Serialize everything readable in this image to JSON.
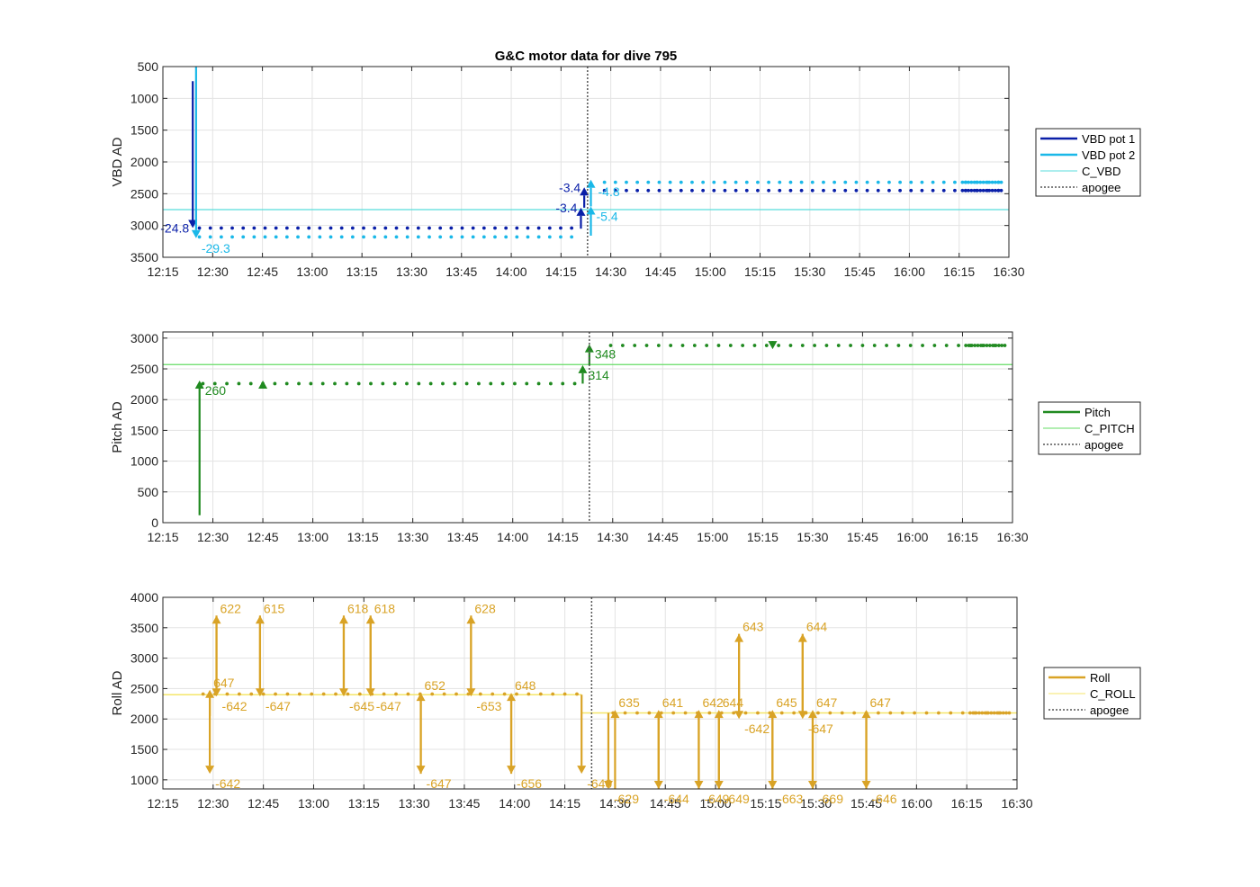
{
  "title": "G&C motor data for dive 795",
  "colors": {
    "vbd1": "#0a1fa8",
    "vbd2": "#1ab8e8",
    "c_vbd": "#58dedc",
    "pitch": "#208a20",
    "c_pitch": "#66dd66",
    "roll": "#d9a326",
    "c_roll": "#f5e66a",
    "apogee": "#555555"
  },
  "chart_data": [
    {
      "id": "vbd",
      "type": "scatter",
      "ylabel": "VBD AD",
      "xlim": [
        "12:15",
        "16:30"
      ],
      "ylim": [
        500,
        3500
      ],
      "y_reversed": true,
      "xtick_labels": [
        "12:15",
        "12:30",
        "12:45",
        "13:00",
        "13:15",
        "13:30",
        "13:45",
        "14:00",
        "14:15",
        "14:30",
        "14:45",
        "15:00",
        "15:15",
        "15:30",
        "15:45",
        "16:00",
        "16:15",
        "16:30"
      ],
      "ytick_labels": [
        "500",
        "1000",
        "1500",
        "2000",
        "2500",
        "3000",
        "3500"
      ],
      "grid": true,
      "legend": {
        "placement": "outside-right",
        "entries": [
          "VBD pot 1",
          "VBD pot 2",
          "C_VBD",
          "apogee"
        ]
      },
      "constant": {
        "name": "C_VBD",
        "value": 2750
      },
      "apogee": "14:23",
      "series": [
        {
          "name": "VBD pot 1",
          "y_before": 3040,
          "y_after": 2450
        },
        {
          "name": "VBD pot 2",
          "y_before": 3180,
          "y_after": 2320
        }
      ],
      "moves": [
        {
          "series": "VBD pot 1",
          "t": "12:24",
          "y1": 730,
          "y2": 3040,
          "label": "-24.8",
          "anchor": "left"
        },
        {
          "series": "VBD pot 2",
          "t": "12:25",
          "y1": 500,
          "y2": 3200,
          "label": "-29.3",
          "anchor": "right-below"
        },
        {
          "series": "VBD pot 1",
          "t": "14:21",
          "y1": 3050,
          "y2": 2720,
          "label": "-3.4",
          "anchor": "left"
        },
        {
          "series": "VBD pot 1",
          "t": "14:22",
          "y1": 2720,
          "y2": 2400,
          "label": "-3.4",
          "anchor": "left"
        },
        {
          "series": "VBD pot 2",
          "t": "14:24",
          "y1": 3160,
          "y2": 2700,
          "label": "-5.4",
          "anchor": "right-below"
        },
        {
          "series": "VBD pot 2",
          "t": "14:24",
          "y1": 2700,
          "y2": 2280,
          "label": "-4.8",
          "anchor": "right"
        }
      ]
    },
    {
      "id": "pitch",
      "type": "scatter",
      "ylabel": "Pitch AD",
      "xlim": [
        "12:15",
        "16:30"
      ],
      "ylim": [
        0,
        3100
      ],
      "xtick_labels": [
        "12:15",
        "12:30",
        "12:45",
        "13:00",
        "13:15",
        "13:30",
        "13:45",
        "14:00",
        "14:15",
        "14:30",
        "14:45",
        "15:00",
        "15:15",
        "15:30",
        "15:45",
        "16:00",
        "16:15",
        "16:30"
      ],
      "ytick_labels": [
        "0",
        "500",
        "1000",
        "1500",
        "2000",
        "2500",
        "3000"
      ],
      "grid": true,
      "legend": {
        "placement": "outside-right",
        "entries": [
          "Pitch",
          "C_PITCH",
          "apogee"
        ]
      },
      "constant": {
        "name": "C_PITCH",
        "value": 2570
      },
      "apogee": "14:23",
      "series": [
        {
          "name": "Pitch",
          "y_before": 2260,
          "y_after": 2880
        }
      ],
      "moves": [
        {
          "t": "12:26",
          "y1": 120,
          "y2": 2310,
          "label": "260",
          "anchor": "right-below"
        },
        {
          "t": "12:45",
          "y1": 2240,
          "y2": 2310,
          "label": "",
          "anchor": "none"
        },
        {
          "t": "14:21",
          "y1": 2260,
          "y2": 2560,
          "label": "314",
          "anchor": "right-below"
        },
        {
          "t": "14:23",
          "y1": 2560,
          "y2": 2900,
          "label": "348",
          "anchor": "right-below"
        },
        {
          "t": "15:18",
          "y1": 2900,
          "y2": 2820,
          "label": "",
          "anchor": "none"
        }
      ]
    },
    {
      "id": "roll",
      "type": "scatter",
      "ylabel": "Roll AD",
      "xlim": [
        "12:15",
        "16:30"
      ],
      "ylim": [
        850,
        4000
      ],
      "xtick_labels": [
        "12:15",
        "12:30",
        "12:45",
        "13:00",
        "13:15",
        "13:30",
        "13:45",
        "14:00",
        "14:15",
        "14:30",
        "14:45",
        "15:00",
        "15:15",
        "15:30",
        "15:45",
        "16:00",
        "16:15",
        "16:30"
      ],
      "ytick_labels": [
        "1000",
        "1500",
        "2000",
        "2500",
        "3000",
        "3500",
        "4000"
      ],
      "grid": true,
      "legend": {
        "placement": "outside-right",
        "entries": [
          "Roll",
          "C_ROLL",
          "apogee"
        ]
      },
      "constant_segments": [
        {
          "name": "C_ROLL",
          "from": "12:15",
          "to": "14:20",
          "value": 2400
        },
        {
          "name": "C_ROLL",
          "from": "14:20",
          "to": "16:30",
          "value": 2100
        }
      ],
      "apogee": "14:23",
      "series": [
        {
          "name": "Roll",
          "y_before": 2410,
          "y_after": 2100
        }
      ],
      "moves": [
        {
          "t": "12:29",
          "y1": 2400,
          "y2": 1100,
          "label": "-642",
          "anchor": "right-below"
        },
        {
          "t": "12:29",
          "y1": 2050,
          "y2": 2480,
          "label": "647",
          "anchor": "right-above"
        },
        {
          "t": "12:31",
          "y1": 2400,
          "y2": 3700,
          "label": "622",
          "anchor": "right-above"
        },
        {
          "t": "12:31",
          "y1": 3700,
          "y2": 2370,
          "label": "-642",
          "anchor": "right-below"
        },
        {
          "t": "12:44",
          "y1": 2400,
          "y2": 3700,
          "label": "615",
          "anchor": "right-above"
        },
        {
          "t": "12:44",
          "y1": 3700,
          "y2": 2370,
          "label": "-647",
          "anchor": "right-below"
        },
        {
          "t": "13:09",
          "y1": 2400,
          "y2": 3700,
          "label": "618",
          "anchor": "right-above"
        },
        {
          "t": "13:09",
          "y1": 3700,
          "y2": 2370,
          "label": "-645",
          "anchor": "right-below"
        },
        {
          "t": "13:17",
          "y1": 2400,
          "y2": 3700,
          "label": "618",
          "anchor": "right-above"
        },
        {
          "t": "13:17",
          "y1": 3700,
          "y2": 2370,
          "label": "-647",
          "anchor": "right-below"
        },
        {
          "t": "13:32",
          "y1": 2400,
          "y2": 1100,
          "label": "-647",
          "anchor": "right-below"
        },
        {
          "t": "13:32",
          "y1": 1100,
          "y2": 2430,
          "label": "652",
          "anchor": "right-above"
        },
        {
          "t": "13:47",
          "y1": 2400,
          "y2": 3700,
          "label": "628",
          "anchor": "right-above"
        },
        {
          "t": "13:47",
          "y1": 3700,
          "y2": 2370,
          "label": "-653",
          "anchor": "right-below"
        },
        {
          "t": "13:59",
          "y1": 2400,
          "y2": 1100,
          "label": "-656",
          "anchor": "right-below"
        },
        {
          "t": "13:59",
          "y1": 1100,
          "y2": 2430,
          "label": "648",
          "anchor": "right-above"
        },
        {
          "t": "14:20",
          "y1": 2400,
          "y2": 1100,
          "label": "-640",
          "anchor": "right-below"
        },
        {
          "t": "14:28",
          "y1": 2100,
          "y2": 850,
          "label": "-629",
          "anchor": "right-below"
        },
        {
          "t": "14:30",
          "y1": 850,
          "y2": 2150,
          "label": "635",
          "anchor": "right-above"
        },
        {
          "t": "14:43",
          "y1": 2100,
          "y2": 850,
          "label": "-644",
          "anchor": "right-below"
        },
        {
          "t": "14:43",
          "y1": 850,
          "y2": 2150,
          "label": "641",
          "anchor": "right-above"
        },
        {
          "t": "14:55",
          "y1": 2100,
          "y2": 850,
          "label": "-649",
          "anchor": "right-below"
        },
        {
          "t": "14:55",
          "y1": 850,
          "y2": 2150,
          "label": "642",
          "anchor": "right-above"
        },
        {
          "t": "15:01",
          "y1": 2100,
          "y2": 850,
          "label": "-649",
          "anchor": "right-below"
        },
        {
          "t": "15:01",
          "y1": 850,
          "y2": 2150,
          "label": "644",
          "anchor": "right-above"
        },
        {
          "t": "15:07",
          "y1": 2100,
          "y2": 3400,
          "label": "643",
          "anchor": "right-above"
        },
        {
          "t": "15:07",
          "y1": 3400,
          "y2": 2000,
          "label": "-642",
          "anchor": "right-below"
        },
        {
          "t": "15:17",
          "y1": 2100,
          "y2": 850,
          "label": "-663",
          "anchor": "right-below"
        },
        {
          "t": "15:17",
          "y1": 850,
          "y2": 2150,
          "label": "645",
          "anchor": "right-above"
        },
        {
          "t": "15:26",
          "y1": 2100,
          "y2": 3400,
          "label": "644",
          "anchor": "right-above"
        },
        {
          "t": "15:26",
          "y1": 3400,
          "y2": 2000,
          "label": "-647",
          "anchor": "right-below"
        },
        {
          "t": "15:29",
          "y1": 2100,
          "y2": 850,
          "label": "-669",
          "anchor": "right-below"
        },
        {
          "t": "15:29",
          "y1": 850,
          "y2": 2150,
          "label": "647",
          "anchor": "right-above"
        },
        {
          "t": "15:45",
          "y1": 2100,
          "y2": 850,
          "label": "-646",
          "anchor": "right-below"
        },
        {
          "t": "15:45",
          "y1": 850,
          "y2": 2150,
          "label": "647",
          "anchor": "right-above"
        }
      ]
    }
  ]
}
